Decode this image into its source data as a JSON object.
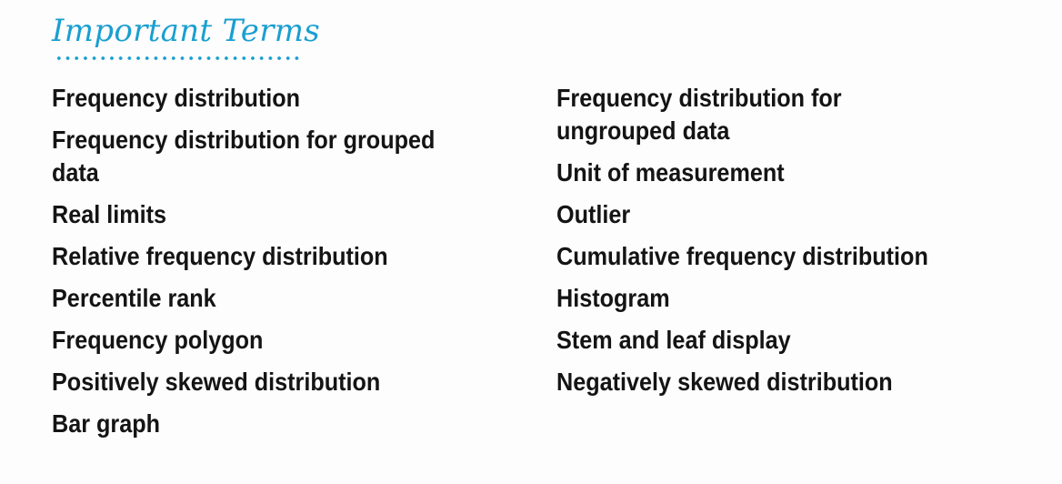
{
  "heading": "Important Terms",
  "left_terms": [
    "Frequency distribution",
    "Frequency distribution for grouped data",
    "Real limits",
    "Relative frequency distribution",
    "Percentile rank",
    "Frequency polygon",
    "Positively skewed distribution",
    "Bar graph"
  ],
  "right_terms": [
    "Frequency distribution for ungrouped data",
    "Unit of measurement",
    "Outlier",
    "Cumulative frequency distribution",
    "Histogram",
    "Stem and leaf display",
    "Negatively skewed distribution"
  ],
  "colors": {
    "heading": "#1a9fd0",
    "text": "#141414"
  }
}
